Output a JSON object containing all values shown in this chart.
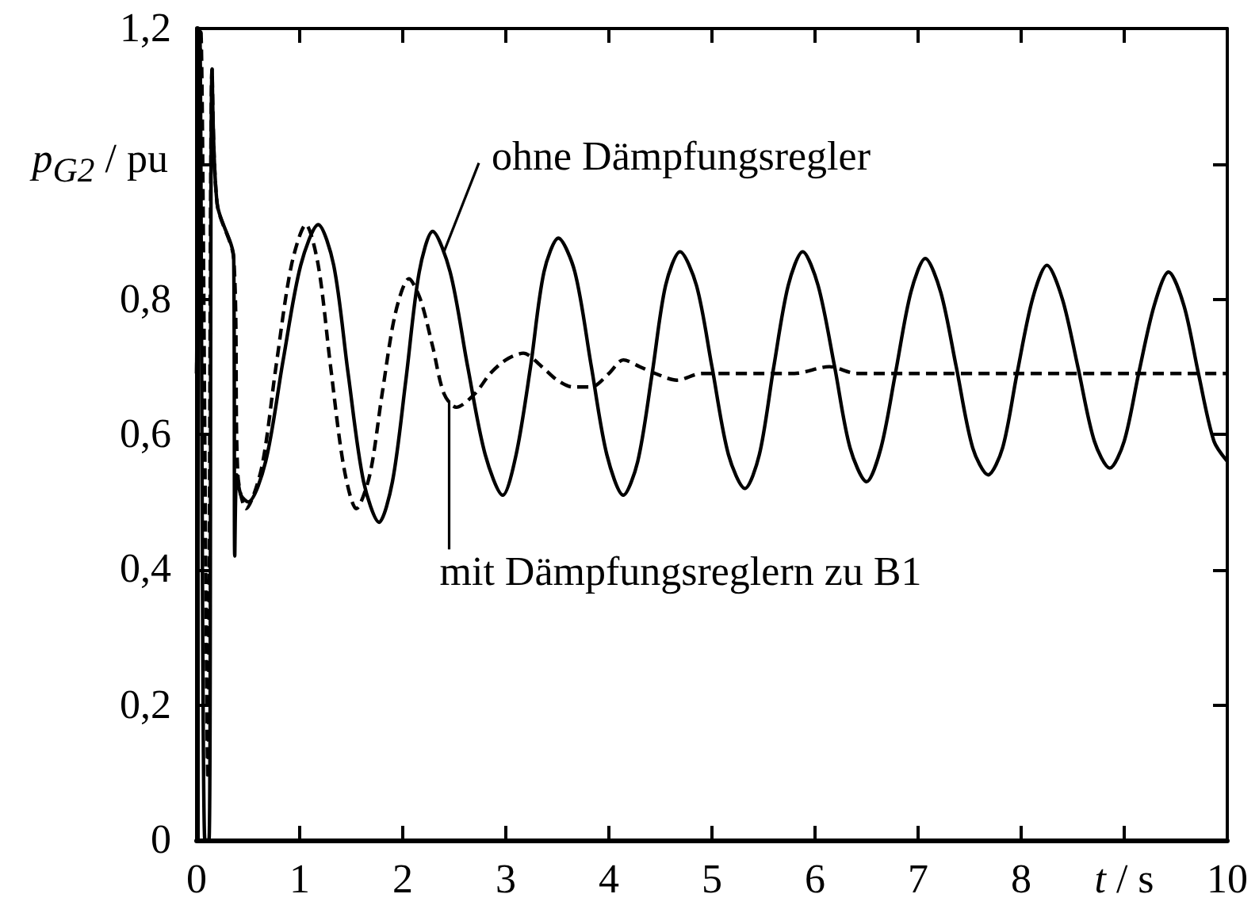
{
  "chart_data": {
    "type": "line",
    "xlabel": "t / s",
    "ylabel": "p$_{G2}$ / pu",
    "marker": "none",
    "xlim": [
      0,
      10
    ],
    "xticks": [
      0,
      1,
      2,
      3,
      4,
      5,
      6,
      7,
      8,
      {
        "value": 9,
        "label": null
      },
      10
    ],
    "ylim": [
      0,
      1.2
    ],
    "yticks": [
      0,
      {
        "value": 0.2,
        "label": "0,2"
      },
      {
        "value": 0.4,
        "label": "0,4"
      },
      {
        "value": 0.6,
        "label": "0,6"
      },
      {
        "value": 0.8,
        "label": "0,8"
      },
      {
        "value": 1,
        "label": null
      },
      {
        "value": 1.2,
        "label": "1,2"
      }
    ],
    "series": [
      {
        "color": "#000000",
        "line_style": "solid",
        "x": [
          0,
          0.03,
          0.08,
          0.12,
          0.15,
          0.2,
          0.36,
          0.37,
          0.39,
          0.43,
          0.5,
          0.67,
          0.84,
          1.01,
          1.18,
          1.33,
          1.47,
          1.62,
          1.77,
          1.9,
          2.03,
          2.16,
          2.29,
          2.46,
          2.63,
          2.8,
          2.97,
          3.1,
          3.24,
          3.37,
          3.51,
          3.67,
          3.83,
          3.98,
          4.14,
          4.28,
          4.42,
          4.55,
          4.69,
          4.85,
          5.0,
          5.16,
          5.32,
          5.46,
          5.6,
          5.74,
          5.88,
          6.03,
          6.19,
          6.34,
          6.5,
          6.64,
          6.78,
          6.93,
          7.07,
          7.22,
          7.37,
          7.53,
          7.68,
          7.82,
          7.96,
          8.11,
          8.25,
          8.4,
          8.55,
          8.71,
          8.86,
          9.0,
          9.14,
          9.29,
          9.43,
          9.58,
          9.72,
          9.87,
          10
        ],
        "values": [
          0.69,
          1.2,
          0,
          0,
          1.14,
          0.94,
          0.86,
          0.42,
          0.54,
          0.51,
          0.5,
          0.56,
          0.71,
          0.85,
          0.91,
          0.85,
          0.69,
          0.53,
          0.47,
          0.53,
          0.68,
          0.84,
          0.9,
          0.84,
          0.7,
          0.57,
          0.51,
          0.57,
          0.7,
          0.84,
          0.89,
          0.84,
          0.7,
          0.57,
          0.51,
          0.56,
          0.69,
          0.82,
          0.87,
          0.82,
          0.7,
          0.57,
          0.52,
          0.57,
          0.7,
          0.82,
          0.87,
          0.82,
          0.7,
          0.58,
          0.53,
          0.58,
          0.69,
          0.81,
          0.86,
          0.81,
          0.7,
          0.58,
          0.54,
          0.58,
          0.69,
          0.8,
          0.85,
          0.8,
          0.7,
          0.59,
          0.55,
          0.59,
          0.69,
          0.79,
          0.84,
          0.79,
          0.69,
          0.59,
          0.56
        ]
      },
      {
        "color": "#000000",
        "line_style": "dashed",
        "x": [
          0,
          0.04,
          0.11,
          0.15,
          0.2,
          0.36,
          0.4,
          0.48,
          0.63,
          0.77,
          0.92,
          1.06,
          1.18,
          1.3,
          1.43,
          1.55,
          1.68,
          1.8,
          1.93,
          2.06,
          2.17,
          2.29,
          2.4,
          2.52,
          2.7,
          2.85,
          3.0,
          3.17,
          3.35,
          3.5,
          3.65,
          3.83,
          4.0,
          4.14,
          4.3,
          4.45,
          4.66,
          4.9,
          5.2,
          5.5,
          5.8,
          6.14,
          6.4,
          7,
          8,
          9,
          10
        ],
        "values": [
          0.69,
          1.2,
          0.09,
          1.14,
          0.94,
          0.86,
          0.54,
          0.49,
          0.55,
          0.7,
          0.85,
          0.91,
          0.85,
          0.7,
          0.55,
          0.49,
          0.54,
          0.66,
          0.78,
          0.83,
          0.8,
          0.73,
          0.66,
          0.64,
          0.66,
          0.69,
          0.71,
          0.72,
          0.7,
          0.68,
          0.67,
          0.67,
          0.69,
          0.71,
          0.7,
          0.69,
          0.68,
          0.69,
          0.69,
          0.69,
          0.69,
          0.7,
          0.69,
          0.69,
          0.69,
          0.69,
          0.69
        ]
      }
    ],
    "annotations": [
      {
        "text": "ohne Dämpfungsregler",
        "x": 2.4,
        "y": 0.87
      },
      {
        "text": "mit Dämpfungsreglern zu B1",
        "x": 2.45,
        "y": 0.65
      }
    ]
  }
}
